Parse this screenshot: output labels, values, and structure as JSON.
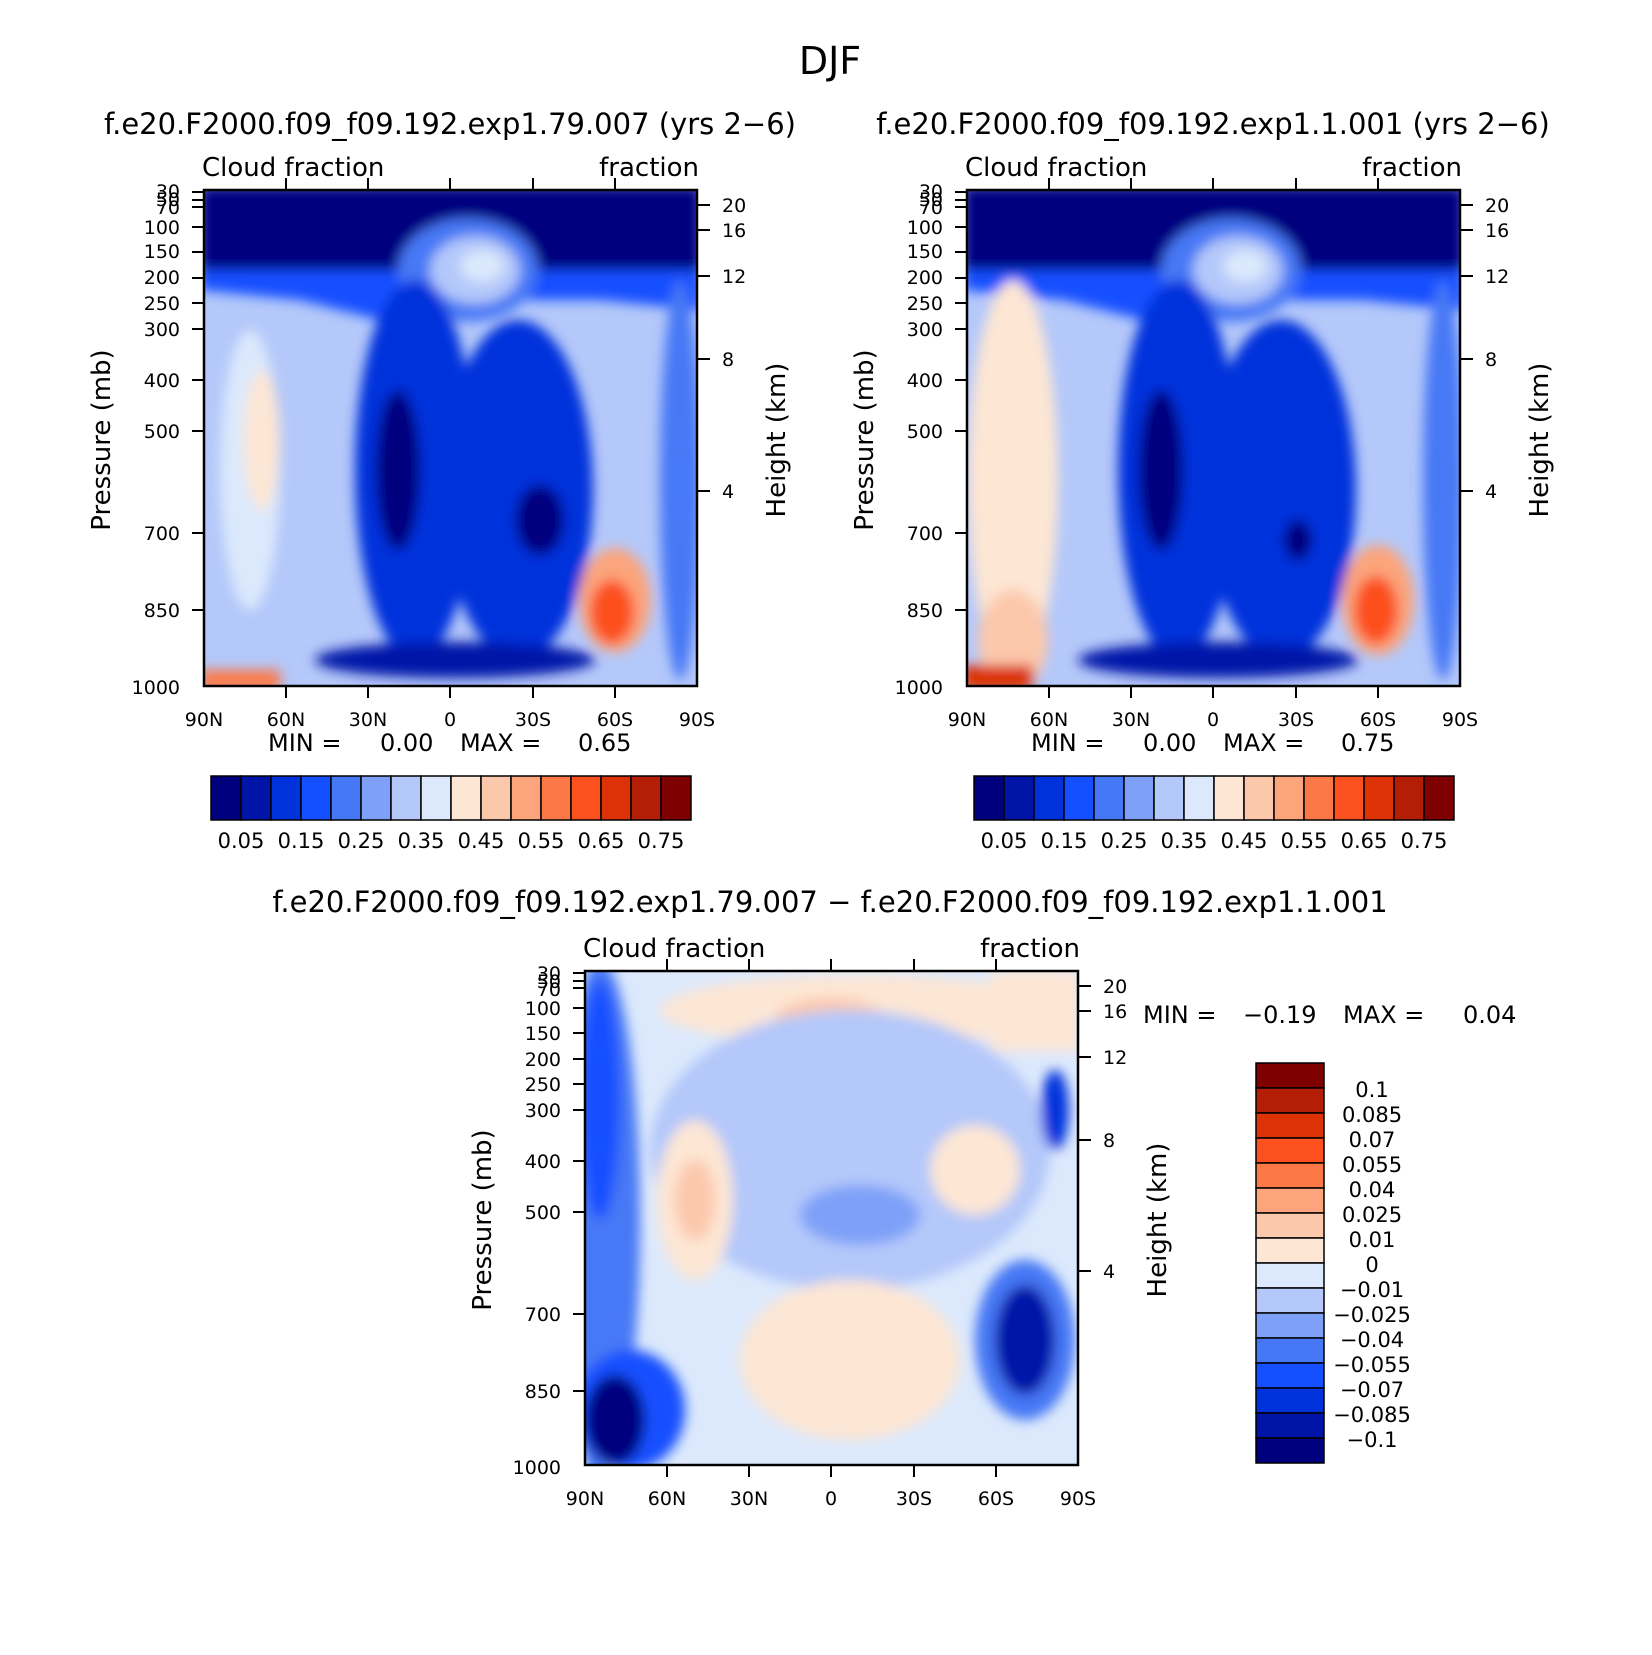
{
  "figure_title": "DJF",
  "chart_data": [
    {
      "type": "heatmap",
      "title": "f.e20.F2000.f09_f09.192.exp1.79.007 (yrs 2−6)",
      "left_label": "Cloud fraction",
      "right_label": "fraction",
      "xlabel": "",
      "ylabel": "Pressure (mb)",
      "ylabel_right": "Height (km)",
      "x_ticks": [
        "90N",
        "60N",
        "30N",
        "0",
        "30S",
        "60S",
        "90S"
      ],
      "y_ticks": [
        "30",
        "50",
        "70",
        "100",
        "150",
        "200",
        "250",
        "300",
        "400",
        "500",
        "700",
        "850",
        "1000"
      ],
      "y_ticks_right": [
        "20",
        "16",
        "12",
        "8",
        "4"
      ],
      "min_label": "MIN =",
      "min_value": "0.00",
      "max_label": "MAX =",
      "max_value": "0.65",
      "colorbar_labels": [
        "0.05",
        "0.15",
        "0.25",
        "0.35",
        "0.45",
        "0.55",
        "0.65",
        "0.75"
      ]
    },
    {
      "type": "heatmap",
      "title": "f.e20.F2000.f09_f09.192.exp1.1.001 (yrs 2−6)",
      "left_label": "Cloud fraction",
      "right_label": "fraction",
      "xlabel": "",
      "ylabel": "Pressure (mb)",
      "ylabel_right": "Height (km)",
      "x_ticks": [
        "90N",
        "60N",
        "30N",
        "0",
        "30S",
        "60S",
        "90S"
      ],
      "y_ticks": [
        "30",
        "50",
        "70",
        "100",
        "150",
        "200",
        "250",
        "300",
        "400",
        "500",
        "700",
        "850",
        "1000"
      ],
      "y_ticks_right": [
        "20",
        "16",
        "12",
        "8",
        "4"
      ],
      "min_label": "MIN =",
      "min_value": "0.00",
      "max_label": "MAX =",
      "max_value": "0.75",
      "colorbar_labels": [
        "0.05",
        "0.15",
        "0.25",
        "0.35",
        "0.45",
        "0.55",
        "0.65",
        "0.75"
      ]
    },
    {
      "type": "heatmap",
      "title": "f.e20.F2000.f09_f09.192.exp1.79.007 − f.e20.F2000.f09_f09.192.exp1.1.001",
      "left_label": "Cloud fraction",
      "right_label": "fraction",
      "xlabel": "",
      "ylabel": "Pressure (mb)",
      "ylabel_right": "Height (km)",
      "x_ticks": [
        "90N",
        "60N",
        "30N",
        "0",
        "30S",
        "60S",
        "90S"
      ],
      "y_ticks": [
        "30",
        "50",
        "70",
        "100",
        "150",
        "200",
        "250",
        "300",
        "400",
        "500",
        "700",
        "850",
        "1000"
      ],
      "y_ticks_right": [
        "20",
        "16",
        "12",
        "8",
        "4"
      ],
      "min_label": "MIN =",
      "min_value": "−0.19",
      "max_label": "MAX =",
      "max_value": "0.04",
      "colorbar_labels": [
        "0.1",
        "0.085",
        "0.07",
        "0.055",
        "0.04",
        "0.025",
        "0.01",
        "0",
        "−0.01",
        "−0.025",
        "−0.04",
        "−0.055",
        "−0.07",
        "−0.085",
        "−0.1"
      ]
    }
  ],
  "colors": {
    "palette": [
      "#00007f",
      "#0014a8",
      "#0032dc",
      "#1450ff",
      "#4678f5",
      "#7ea0f8",
      "#b4c8fa",
      "#dce9fc",
      "#fde6d4",
      "#fcc8ac",
      "#fca47c",
      "#fc7846",
      "#fc501e",
      "#dc3206",
      "#b41e06",
      "#7f0000"
    ]
  }
}
